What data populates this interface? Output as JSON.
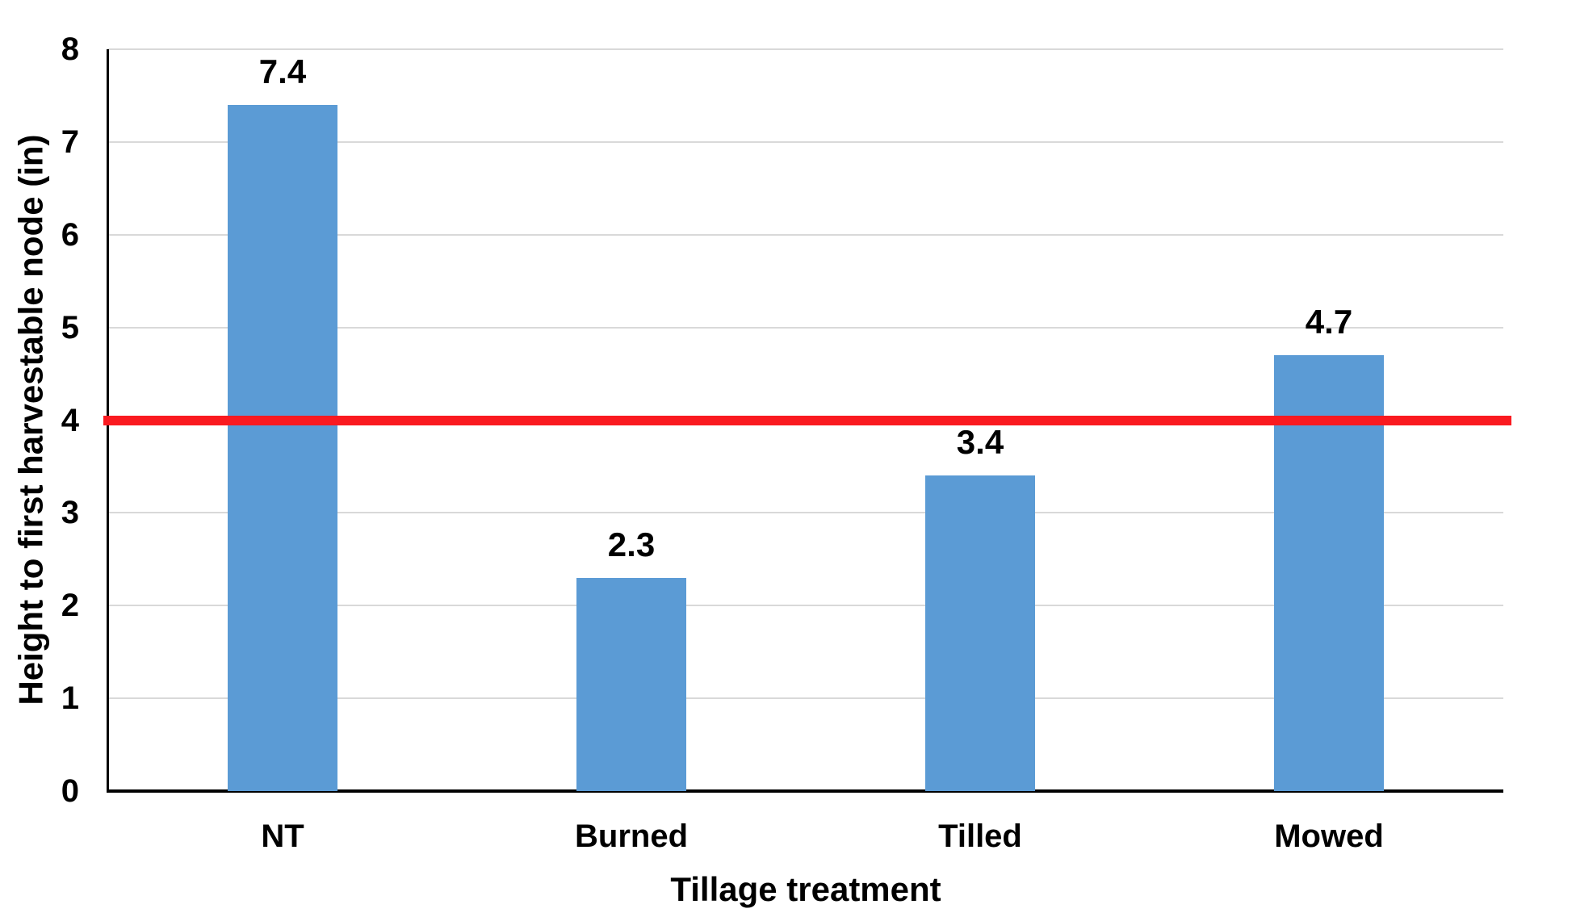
{
  "chart_data": {
    "type": "bar",
    "categories": [
      "NT",
      "Burned",
      "Tilled",
      "Mowed"
    ],
    "values": [
      7.4,
      2.3,
      3.4,
      4.7
    ],
    "value_labels": [
      "7.4",
      "2.3",
      "3.4",
      "4.7"
    ],
    "title": "",
    "xlabel": "Tillage treatment",
    "ylabel": "Height to first harvestable node (in)",
    "ylim": [
      0,
      8
    ],
    "yticks": [
      0,
      1,
      2,
      3,
      4,
      5,
      6,
      7,
      8
    ],
    "ytick_labels": [
      "0",
      "1",
      "2",
      "3",
      "4",
      "5",
      "6",
      "7",
      "8"
    ],
    "grid": true,
    "legend": "none",
    "reference_line": {
      "y": 4
    }
  },
  "colors": {
    "bar": "#5B9BD5",
    "reference_line": "#FA1A20",
    "gridline": "#D9D9D9",
    "axis": "#000000",
    "text": "#000000",
    "background": "#FFFFFF"
  }
}
